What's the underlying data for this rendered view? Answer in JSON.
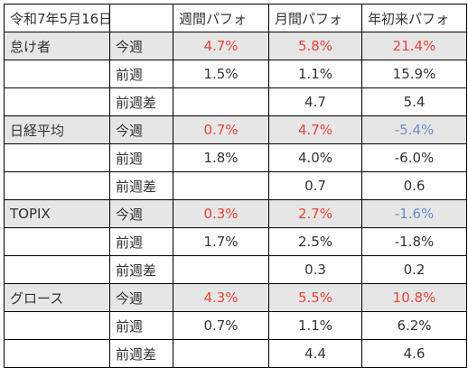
{
  "header": {
    "date": "令和7年5月16日",
    "columns": [
      "週間パフォ",
      "月間パフォ",
      "年初来パフォ"
    ]
  },
  "colors": {
    "positive": "#e8433d",
    "negative": "#6d8ccc",
    "shaded_row": "#e6e6e6",
    "text": "#333333"
  },
  "groups": [
    {
      "name": "怠け者",
      "rows": [
        {
          "label": "今週",
          "weekly": "4.7%",
          "monthly": "5.8%",
          "ytd": "21.4%",
          "tone": [
            "up",
            "up",
            "up"
          ]
        },
        {
          "label": "前週",
          "weekly": "1.5%",
          "monthly": "1.1%",
          "ytd": "15.9%",
          "tone": [
            "",
            "",
            ""
          ]
        },
        {
          "label": "前週差",
          "weekly": "",
          "monthly": "4.7",
          "ytd": "5.4",
          "tone": [
            "",
            "",
            ""
          ]
        }
      ]
    },
    {
      "name": "日経平均",
      "rows": [
        {
          "label": "今週",
          "weekly": "0.7%",
          "monthly": "4.7%",
          "ytd": "-5.4%",
          "tone": [
            "up",
            "up",
            "down"
          ]
        },
        {
          "label": "前週",
          "weekly": "1.8%",
          "monthly": "4.0%",
          "ytd": "-6.0%",
          "tone": [
            "",
            "",
            ""
          ]
        },
        {
          "label": "前週差",
          "weekly": "",
          "monthly": "0.7",
          "ytd": "0.6",
          "tone": [
            "",
            "",
            ""
          ]
        }
      ]
    },
    {
      "name": "TOPIX",
      "rows": [
        {
          "label": "今週",
          "weekly": "0.3%",
          "monthly": "2.7%",
          "ytd": "-1.6%",
          "tone": [
            "up",
            "up",
            "down"
          ]
        },
        {
          "label": "前週",
          "weekly": "1.7%",
          "monthly": "2.5%",
          "ytd": "-1.8%",
          "tone": [
            "",
            "",
            ""
          ]
        },
        {
          "label": "前週差",
          "weekly": "",
          "monthly": "0.3",
          "ytd": "0.2",
          "tone": [
            "",
            "",
            ""
          ]
        }
      ]
    },
    {
      "name": "グロース",
      "rows": [
        {
          "label": "今週",
          "weekly": "4.3%",
          "monthly": "5.5%",
          "ytd": "10.8%",
          "tone": [
            "up",
            "up",
            "up"
          ]
        },
        {
          "label": "前週",
          "weekly": "0.7%",
          "monthly": "1.1%",
          "ytd": "6.2%",
          "tone": [
            "",
            "",
            ""
          ]
        },
        {
          "label": "前週差",
          "weekly": "",
          "monthly": "4.4",
          "ytd": "4.6",
          "tone": [
            "",
            "",
            ""
          ]
        }
      ]
    }
  ]
}
